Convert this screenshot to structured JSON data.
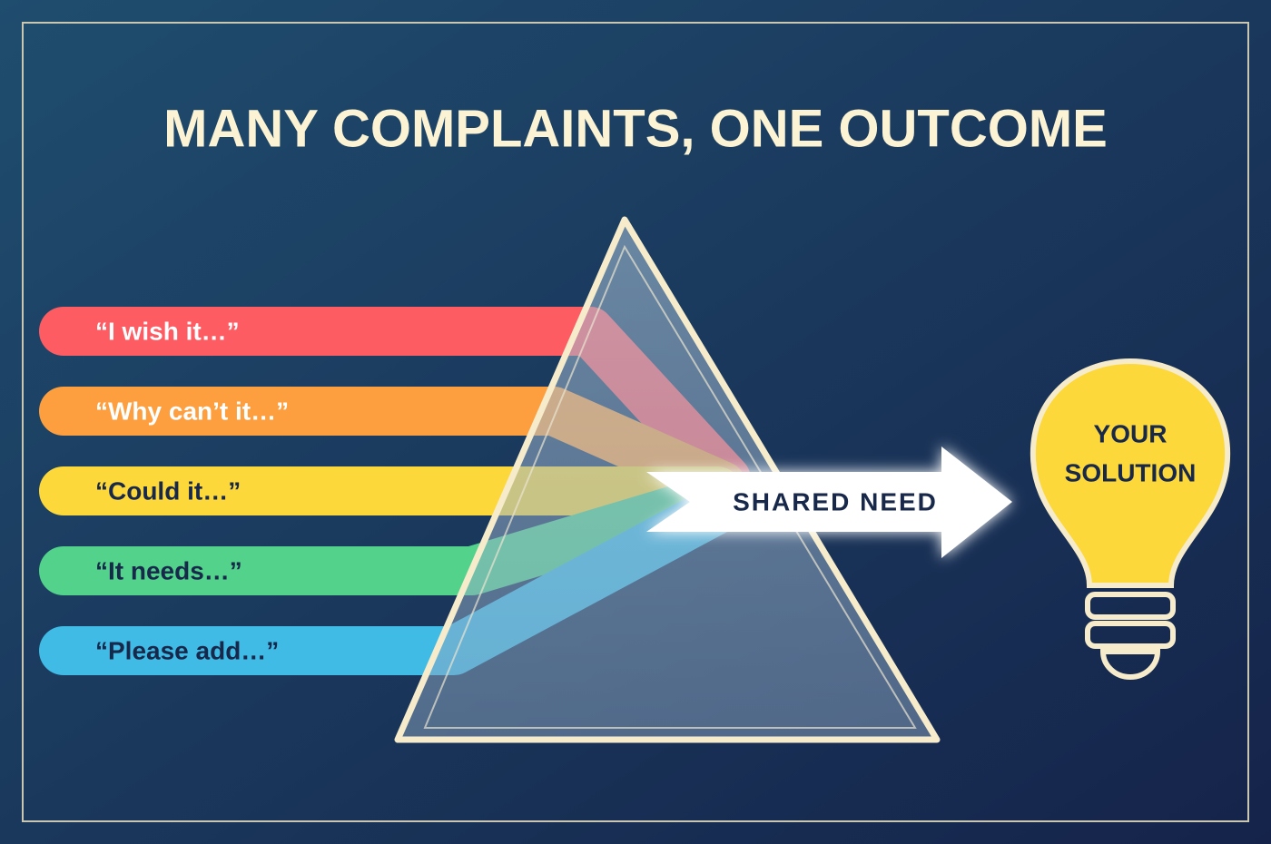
{
  "title": "MANY COMPLAINTS, ONE OUTCOME",
  "complaints": [
    "“I wish it…”",
    "“Why can’t it…”",
    "“Could it…”",
    "“It needs…”",
    "“Please add…”"
  ],
  "arrow_label": "SHARED NEED",
  "solution_lines": [
    "YOUR",
    "SOLUTION"
  ]
}
